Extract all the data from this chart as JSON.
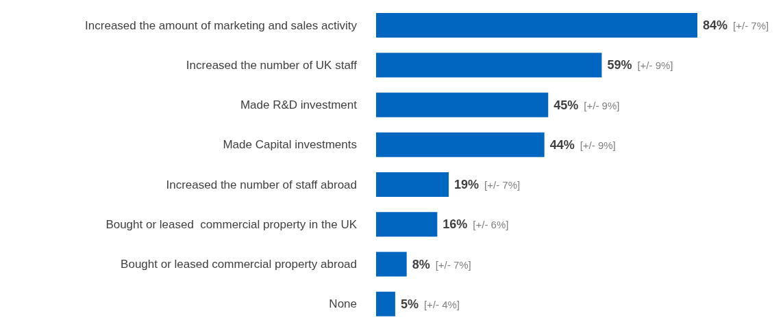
{
  "chart_data": {
    "type": "bar",
    "orientation": "horizontal",
    "categories": [
      "Increased the amount of marketing and sales activity",
      "Increased the number of UK staff",
      "Made R&D investment",
      "Made Capital investments",
      "Increased the number of staff abroad",
      "Bought or leased  commercial property in the UK",
      "Bought or leased commercial property abroad",
      "None"
    ],
    "values": [
      84,
      59,
      45,
      44,
      19,
      16,
      8,
      5
    ],
    "value_labels": [
      "84%",
      "59%",
      "45%",
      "44%",
      "19%",
      "16%",
      "8%",
      "5%"
    ],
    "color": "#0066c0",
    "annotations": [
      "[+/- 7%]",
      "[+/- 9%]",
      "[+/- 9%]",
      "[+/- 9%]",
      "[+/- 7%]",
      "[+/- 6%]",
      "[+/- 7%]",
      "[+/- 4%]"
    ],
    "grid": false,
    "legend": false
  }
}
